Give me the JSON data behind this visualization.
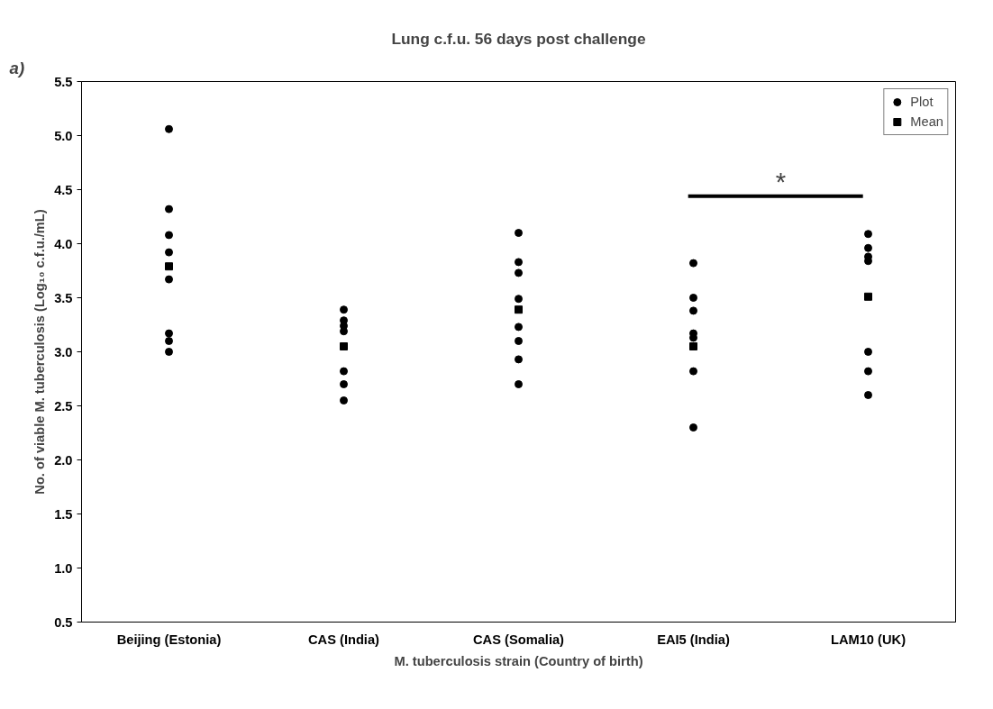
{
  "chart_data": {
    "type": "scatter",
    "title": "Lung c.f.u. 56 days post challenge",
    "xlabel": "M. tuberculosis strain (Country of birth)",
    "ylabel": "No. of viable M. tuberculosis (Log₁₀ c.f.u./mL)",
    "categories": [
      "Beijing (Estonia)",
      "CAS (India)",
      "CAS (Somalia)",
      "EAI5 (India)",
      "LAM10 (UK)"
    ],
    "series": [
      {
        "name": "Plot",
        "color": "#000000",
        "marker": "circle",
        "x": [
          "Beijing (Estonia)",
          "Beijing (Estonia)",
          "Beijing (Estonia)",
          "Beijing (Estonia)",
          "Beijing (Estonia)",
          "Beijing (Estonia)",
          "Beijing (Estonia)",
          "Beijing (Estonia)",
          "CAS (India)",
          "CAS (India)",
          "CAS (India)",
          "CAS (India)",
          "CAS (India)",
          "CAS (India)",
          "CAS (India)",
          "CAS (Somalia)",
          "CAS (Somalia)",
          "CAS (Somalia)",
          "CAS (Somalia)",
          "CAS (Somalia)",
          "CAS (Somalia)",
          "CAS (Somalia)",
          "CAS (Somalia)",
          "EAI5 (India)",
          "EAI5 (India)",
          "EAI5 (India)",
          "EAI5 (India)",
          "EAI5 (India)",
          "EAI5 (India)",
          "EAI5 (India)",
          "LAM10 (UK)",
          "LAM10 (UK)",
          "LAM10 (UK)",
          "LAM10 (UK)",
          "LAM10 (UK)",
          "LAM10 (UK)",
          "LAM10 (UK)"
        ],
        "values": [
          5.06,
          4.32,
          4.08,
          3.92,
          3.67,
          3.17,
          3.1,
          3.0,
          3.39,
          3.29,
          3.24,
          3.19,
          2.82,
          2.7,
          2.55,
          4.1,
          3.83,
          3.73,
          3.49,
          3.23,
          3.1,
          2.93,
          2.7,
          3.82,
          3.5,
          3.38,
          3.17,
          3.13,
          2.82,
          2.3,
          4.09,
          3.96,
          3.88,
          3.84,
          3.0,
          2.82,
          2.6
        ]
      },
      {
        "name": "Mean",
        "color": "#000000",
        "marker": "square",
        "x": [
          "Beijing (Estonia)",
          "CAS (India)",
          "CAS (Somalia)",
          "EAI5 (India)",
          "LAM10 (UK)"
        ],
        "values": [
          3.79,
          3.05,
          3.39,
          3.05,
          3.51
        ]
      }
    ],
    "ylim": [
      0.5,
      5.5
    ],
    "yticks": [
      0.5,
      {
        "value": 1,
        "label": "1.0"
      },
      1.5,
      {
        "value": 2,
        "label": "2.0"
      },
      2.5,
      {
        "value": 3,
        "label": "3.0"
      },
      3.5,
      {
        "value": 4,
        "label": "4.0"
      },
      4.5,
      {
        "value": 5,
        "label": "5.0"
      },
      5.5
    ],
    "grid": false,
    "legend": "top right",
    "annotations": [
      "a)",
      "*"
    ]
  }
}
